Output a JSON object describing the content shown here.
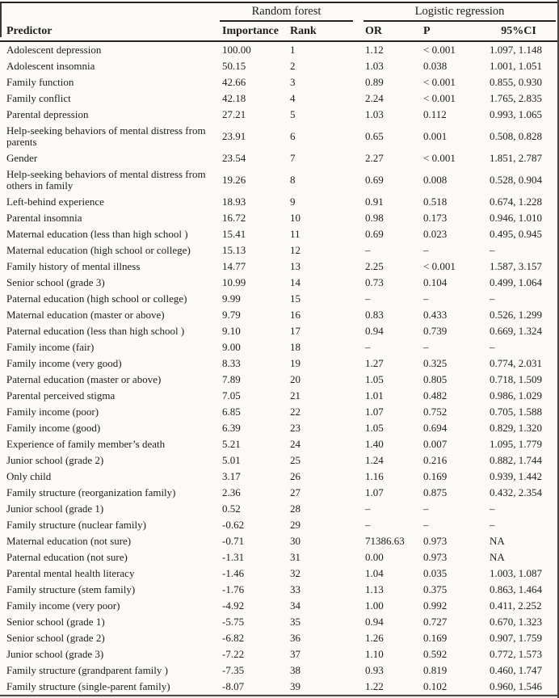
{
  "table": {
    "spanners": [
      {
        "label": "Random forest"
      },
      {
        "label": "Logistic regression"
      }
    ],
    "columns": [
      "Predictor",
      "Importance",
      "Rank",
      "OR",
      "P",
      "95%CI"
    ],
    "rows": [
      {
        "predictor": "Adolescent depression",
        "importance": "100.00",
        "rank": "1",
        "or": "1.12",
        "p": "< 0.001",
        "ci": "1.097, 1.148"
      },
      {
        "predictor": "Adolescent insomnia",
        "importance": "50.15",
        "rank": "2",
        "or": "1.03",
        "p": "0.038",
        "ci": "1.001, 1.051"
      },
      {
        "predictor": "Family function",
        "importance": "42.66",
        "rank": "3",
        "or": "0.89",
        "p": "< 0.001",
        "ci": "0.855, 0.930"
      },
      {
        "predictor": "Family conflict",
        "importance": "42.18",
        "rank": "4",
        "or": "2.24",
        "p": "< 0.001",
        "ci": "1.765, 2.835"
      },
      {
        "predictor": "Parental depression",
        "importance": "27.21",
        "rank": "5",
        "or": "1.03",
        "p": "0.112",
        "ci": "0.993, 1.065"
      },
      {
        "predictor": "Help-seeking behaviors of mental distress from parents",
        "importance": "23.91",
        "rank": "6",
        "or": "0.65",
        "p": "0.001",
        "ci": "0.508, 0.828"
      },
      {
        "predictor": "Gender",
        "importance": "23.54",
        "rank": "7",
        "or": "2.27",
        "p": "< 0.001",
        "ci": "1.851, 2.787"
      },
      {
        "predictor": "Help-seeking behaviors of mental distress from others in family",
        "importance": "19.26",
        "rank": "8",
        "or": "0.69",
        "p": "0.008",
        "ci": "0.528, 0.904"
      },
      {
        "predictor": "Left-behind experience",
        "importance": "18.93",
        "rank": "9",
        "or": "0.91",
        "p": "0.518",
        "ci": "0.674, 1.228"
      },
      {
        "predictor": "Parental insomnia",
        "importance": "16.72",
        "rank": "10",
        "or": "0.98",
        "p": "0.173",
        "ci": "0.946, 1.010"
      },
      {
        "predictor": "Maternal education (less than high school )",
        "importance": "15.41",
        "rank": "11",
        "or": "0.69",
        "p": "0.023",
        "ci": "0.495, 0.945"
      },
      {
        "predictor": "Maternal education (high school or college)",
        "importance": "15.13",
        "rank": "12",
        "or": "–",
        "p": "–",
        "ci": "–"
      },
      {
        "predictor": "Family history of mental illness",
        "importance": "14.77",
        "rank": "13",
        "or": "2.25",
        "p": "< 0.001",
        "ci": "1.587, 3.157"
      },
      {
        "predictor": "Senior school (grade 3)",
        "importance": "10.99",
        "rank": "14",
        "or": "0.73",
        "p": "0.104",
        "ci": "0.499, 1.064"
      },
      {
        "predictor": "Paternal education (high school or college)",
        "importance": "9.99",
        "rank": "15",
        "or": "–",
        "p": "–",
        "ci": "–"
      },
      {
        "predictor": "Maternal education (master or above)",
        "importance": "9.79",
        "rank": "16",
        "or": "0.83",
        "p": "0.433",
        "ci": "0.526, 1.299"
      },
      {
        "predictor": "Paternal education (less than high school )",
        "importance": "9.10",
        "rank": "17",
        "or": "0.94",
        "p": "0.739",
        "ci": "0.669, 1.324"
      },
      {
        "predictor": "Family income (fair)",
        "importance": "9.00",
        "rank": "18",
        "or": "–",
        "p": "–",
        "ci": "–"
      },
      {
        "predictor": "Family income (very good)",
        "importance": "8.33",
        "rank": "19",
        "or": "1.27",
        "p": "0.325",
        "ci": "0.774, 2.031"
      },
      {
        "predictor": "Paternal education (master or above)",
        "importance": "7.89",
        "rank": "20",
        "or": "1.05",
        "p": "0.805",
        "ci": "0.718, 1.509"
      },
      {
        "predictor": "Parental perceived stigma",
        "importance": "7.05",
        "rank": "21",
        "or": "1.01",
        "p": "0.482",
        "ci": "0.986, 1.029"
      },
      {
        "predictor": "Family income (poor)",
        "importance": "6.85",
        "rank": "22",
        "or": "1.07",
        "p": "0.752",
        "ci": "0.705, 1.588"
      },
      {
        "predictor": "Family income (good)",
        "importance": "6.39",
        "rank": "23",
        "or": "1.05",
        "p": "0.694",
        "ci": "0.829, 1.320"
      },
      {
        "predictor": "Experience of family member’s death",
        "importance": "5.21",
        "rank": "24",
        "or": "1.40",
        "p": "0.007",
        "ci": "1.095, 1.779"
      },
      {
        "predictor": "Junior school (grade 2)",
        "importance": "5.01",
        "rank": "25",
        "or": "1.24",
        "p": "0.216",
        "ci": "0.882, 1.744"
      },
      {
        "predictor": "Only child",
        "importance": "3.17",
        "rank": "26",
        "or": "1.16",
        "p": "0.169",
        "ci": "0.939, 1.442"
      },
      {
        "predictor": "Family structure (reorganization family)",
        "importance": "2.36",
        "rank": "27",
        "or": "1.07",
        "p": "0.875",
        "ci": "0.432, 2.354"
      },
      {
        "predictor": "Junior school (grade 1)",
        "importance": "0.52",
        "rank": "28",
        "or": "–",
        "p": "–",
        "ci": "–"
      },
      {
        "predictor": "Family structure (nuclear family)",
        "importance": "-0.62",
        "rank": "29",
        "or": "–",
        "p": "–",
        "ci": "–"
      },
      {
        "predictor": "Maternal education (not sure)",
        "importance": "-0.71",
        "rank": "30",
        "or": "71386.63",
        "p": "0.973",
        "ci": "NA"
      },
      {
        "predictor": "Paternal education (not sure)",
        "importance": "-1.31",
        "rank": "31",
        "or": "0.00",
        "p": "0.973",
        "ci": "NA"
      },
      {
        "predictor": "Parental mental health literacy",
        "importance": "-1.46",
        "rank": "32",
        "or": "1.04",
        "p": "0.035",
        "ci": "1.003, 1.087"
      },
      {
        "predictor": "Family structure (stem family)",
        "importance": "-1.76",
        "rank": "33",
        "or": "1.13",
        "p": "0.375",
        "ci": "0.863, 1.464"
      },
      {
        "predictor": "Family income (very poor)",
        "importance": "-4.92",
        "rank": "34",
        "or": "1.00",
        "p": "0.992",
        "ci": "0.411, 2.252"
      },
      {
        "predictor": "Senior school (grade 1)",
        "importance": "-5.75",
        "rank": "35",
        "or": "0.94",
        "p": "0.727",
        "ci": "0.670, 1.323"
      },
      {
        "predictor": "Senior school (grade 2)",
        "importance": "-6.82",
        "rank": "36",
        "or": "1.26",
        "p": "0.169",
        "ci": "0.907, 1.759"
      },
      {
        "predictor": "Junior school (grade 3)",
        "importance": "-7.22",
        "rank": "37",
        "or": "1.10",
        "p": "0.592",
        "ci": "0.772, 1.573"
      },
      {
        "predictor": "Family structure (grandparent family )",
        "importance": "-7.35",
        "rank": "38",
        "or": "0.93",
        "p": "0.819",
        "ci": "0.460, 1.747"
      },
      {
        "predictor": "Family structure (single-parent family)",
        "importance": "-8.07",
        "rank": "39",
        "or": "1.22",
        "p": "0.102",
        "ci": "0.960, 1.546"
      }
    ]
  }
}
